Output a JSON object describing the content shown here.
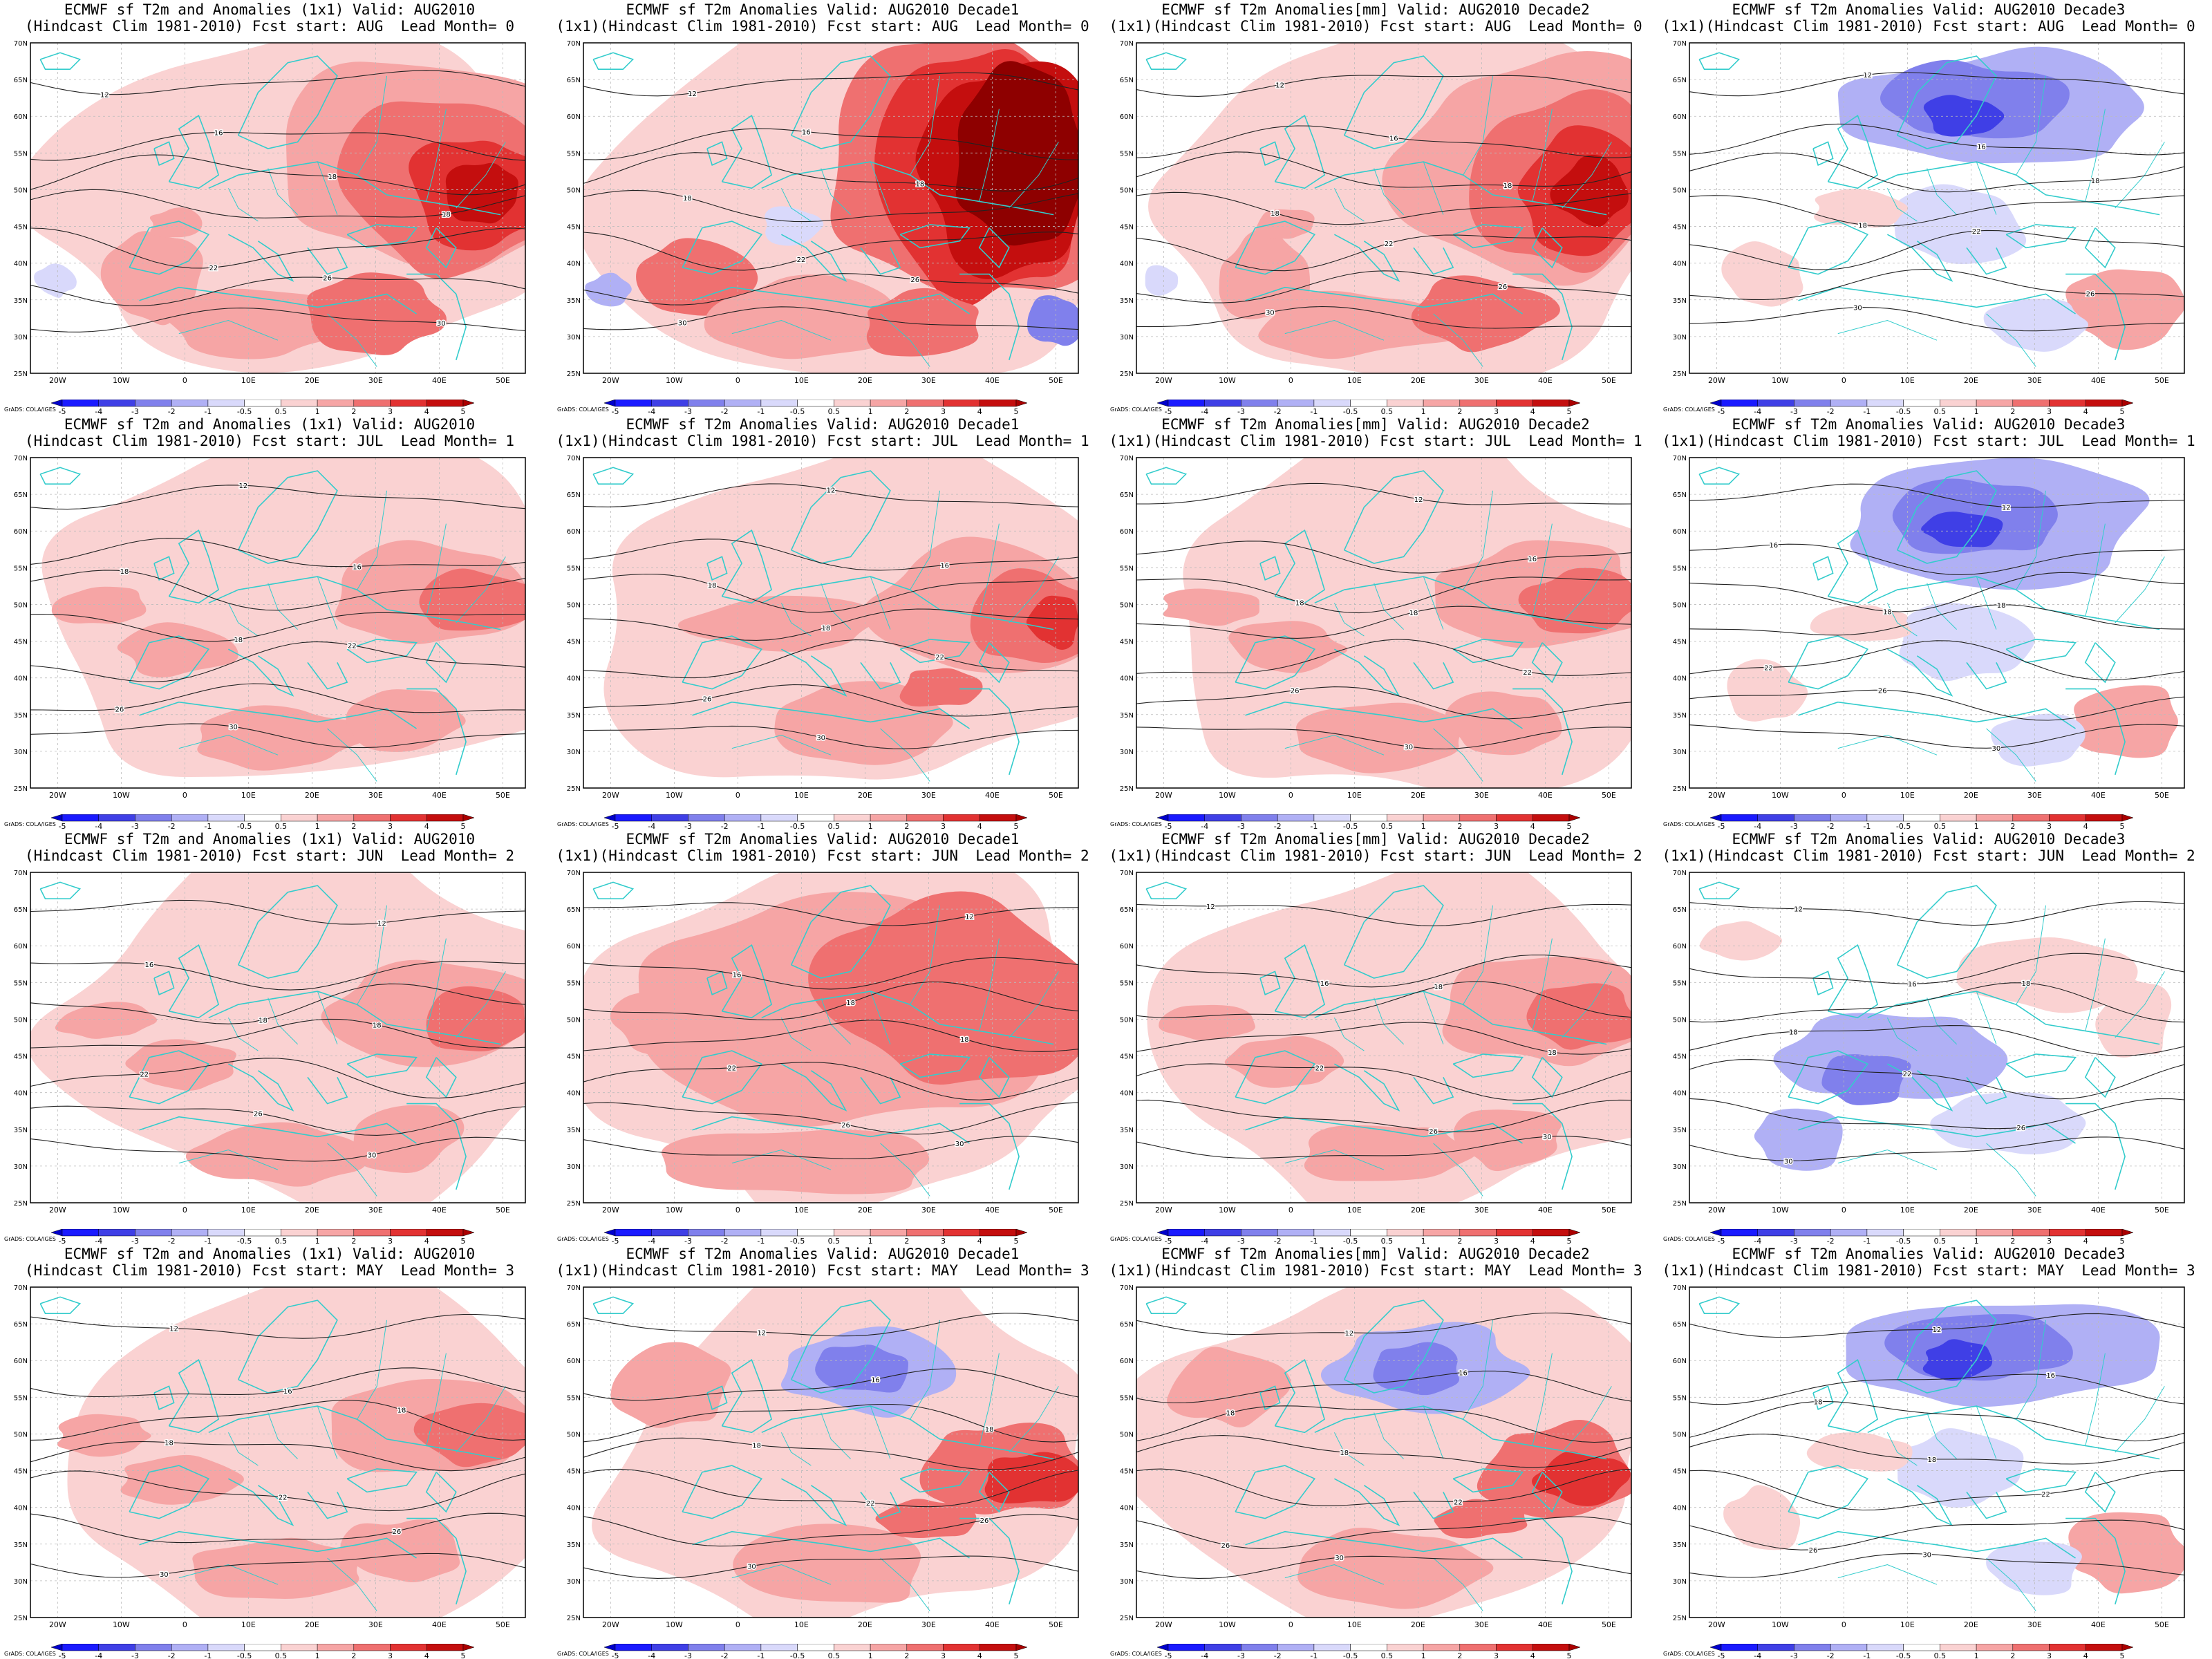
{
  "colors": {
    "warm": [
      "#fad2d2",
      "#f6a5a5",
      "#ef7070",
      "#e23232",
      "#c40e0e",
      "#8e0000"
    ],
    "cool": [
      "#d9d9fb",
      "#b0b0f5",
      "#8080ec",
      "#3f3fe6",
      "#1a1aff"
    ],
    "coast": "#33cccc",
    "contour": "#222222"
  },
  "lat_labels": [
    "70N",
    "65N",
    "60N",
    "55N",
    "50N",
    "45N",
    "40N",
    "35N",
    "30N",
    "25N"
  ],
  "lon_labels": [
    "20W",
    "10W",
    "0",
    "10E",
    "20E",
    "30E",
    "40E",
    "50E"
  ],
  "colorbar_labels": [
    "-5",
    "-4",
    "-3",
    "-2",
    "-1",
    "-0.5",
    "0.5",
    "1",
    "2",
    "3",
    "4",
    "5"
  ],
  "grads_credit": "GrADS: COLA/IGES",
  "contour_labels": [
    "12",
    "16",
    "18",
    "22",
    "26",
    "30"
  ],
  "panels": [
    {
      "line1": "ECMWF sf T2m and Anomalies (1x1) Valid: AUG2010",
      "line2": "(Hindcast Clim 1981-2010) Fcst start: AUG  Lead Month= 0",
      "anomaly": "strong-warm-east"
    },
    {
      "line1": "ECMWF sf T2m Anomalies Valid: AUG2010 Decade1",
      "line2": "(1x1)(Hindcast Clim 1981-2010) Fcst start: AUG  Lead Month= 0",
      "anomaly": "extreme-warm-east"
    },
    {
      "line1": "ECMWF sf T2m Anomalies[mm] Valid: AUG2010 Decade2",
      "line2": "(1x1)(Hindcast Clim 1981-2010) Fcst start: AUG  Lead Month= 0",
      "anomaly": "strong-warm-east"
    },
    {
      "line1": "ECMWF sf T2m Anomalies Valid: AUG2010 Decade3",
      "line2": "(1x1)(Hindcast Clim 1981-2010) Fcst start: AUG  Lead Month= 0",
      "anomaly": "cool-north"
    },
    {
      "line1": "ECMWF sf T2m and Anomalies (1x1) Valid: AUG2010",
      "line2": "(Hindcast Clim 1981-2010) Fcst start: JUL  Lead Month= 1",
      "anomaly": "mild-warm"
    },
    {
      "line1": "ECMWF sf T2m Anomalies Valid: AUG2010 Decade1",
      "line2": "(1x1)(Hindcast Clim 1981-2010) Fcst start: JUL  Lead Month= 1",
      "anomaly": "warm-east"
    },
    {
      "line1": "ECMWF sf T2m Anomalies[mm] Valid: AUG2010 Decade2",
      "line2": "(1x1)(Hindcast Clim 1981-2010) Fcst start: JUL  Lead Month= 1",
      "anomaly": "mild-warm"
    },
    {
      "line1": "ECMWF sf T2m Anomalies Valid: AUG2010 Decade3",
      "line2": "(1x1)(Hindcast Clim 1981-2010) Fcst start: JUL  Lead Month= 1",
      "anomaly": "cool-north"
    },
    {
      "line1": "ECMWF sf T2m and Anomalies (1x1) Valid: AUG2010",
      "line2": "(Hindcast Clim 1981-2010) Fcst start: JUN  Lead Month= 2",
      "anomaly": "mild-warm"
    },
    {
      "line1": "ECMWF sf T2m Anomalies Valid: AUG2010 Decade1",
      "line2": "(1x1)(Hindcast Clim 1981-2010) Fcst start: JUN  Lead Month= 2",
      "anomaly": "broad-warm"
    },
    {
      "line1": "ECMWF sf T2m Anomalies[mm] Valid: AUG2010 Decade2",
      "line2": "(1x1)(Hindcast Clim 1981-2010) Fcst start: JUN  Lead Month= 2",
      "anomaly": "mild-warm"
    },
    {
      "line1": "ECMWF sf T2m Anomalies Valid: AUG2010 Decade3",
      "line2": "(1x1)(Hindcast Clim 1981-2010) Fcst start: JUN  Lead Month= 2",
      "anomaly": "cool-central"
    },
    {
      "line1": "ECMWF sf T2m and Anomalies (1x1) Valid: AUG2010",
      "line2": "(Hindcast Clim 1981-2010) Fcst start: MAY  Lead Month= 3",
      "anomaly": "mild-warm"
    },
    {
      "line1": "ECMWF sf T2m Anomalies Valid: AUG2010 Decade1",
      "line2": "(1x1)(Hindcast Clim 1981-2010) Fcst start: MAY  Lead Month= 3",
      "anomaly": "warm-cool-north"
    },
    {
      "line1": "ECMWF sf T2m Anomalies[mm] Valid: AUG2010 Decade2",
      "line2": "(1x1)(Hindcast Clim 1981-2010) Fcst start: MAY  Lead Month= 3",
      "anomaly": "warm-cool-north"
    },
    {
      "line1": "ECMWF sf T2m Anomalies Valid: AUG2010 Decade3",
      "line2": "(1x1)(Hindcast Clim 1981-2010) Fcst start: MAY  Lead Month= 3",
      "anomaly": "cool-north"
    }
  ]
}
